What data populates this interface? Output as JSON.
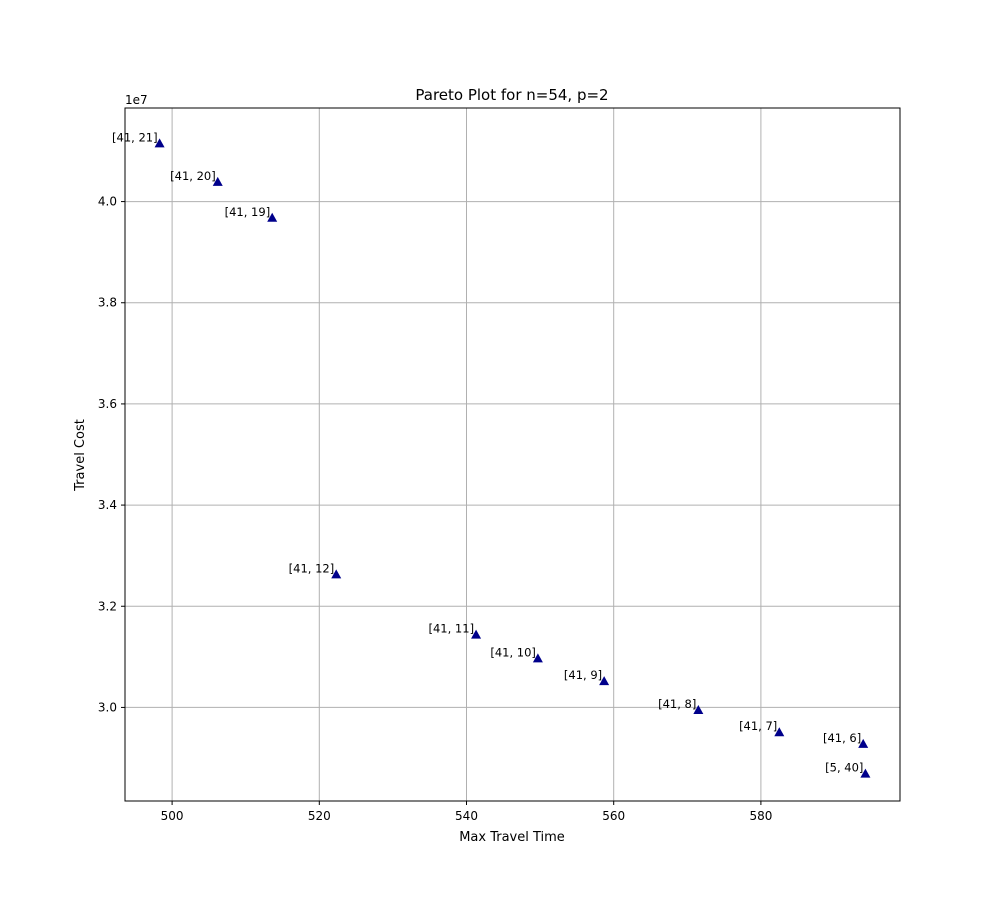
{
  "chart_data": {
    "type": "scatter",
    "title": "Pareto Plot for n=54, p=2",
    "xlabel": "Max Travel Time",
    "ylabel": "Travel Cost",
    "y_offset_label": "1e7",
    "xlim": [
      493.6,
      598.9
    ],
    "ylim": [
      28150000,
      41850000
    ],
    "x_ticks": [
      500,
      520,
      540,
      560,
      580
    ],
    "x_tick_labels": [
      "500",
      "520",
      "540",
      "560",
      "580"
    ],
    "y_ticks": [
      30000000,
      32000000,
      34000000,
      36000000,
      38000000,
      40000000
    ],
    "y_tick_labels": [
      "3.0",
      "3.2",
      "3.4",
      "3.6",
      "3.8",
      "4.0"
    ],
    "grid": true,
    "marker": "triangle",
    "marker_color": "#00008b",
    "points": [
      {
        "x": 498.3,
        "y": 41150000,
        "label": "[41, 21]"
      },
      {
        "x": 506.2,
        "y": 40390000,
        "label": "[41, 20]"
      },
      {
        "x": 513.6,
        "y": 39680000,
        "label": "[41, 19]"
      },
      {
        "x": 522.3,
        "y": 32630000,
        "label": "[41, 12]"
      },
      {
        "x": 541.3,
        "y": 31440000,
        "label": "[41, 11]"
      },
      {
        "x": 549.7,
        "y": 30970000,
        "label": "[41, 10]"
      },
      {
        "x": 558.7,
        "y": 30520000,
        "label": "[41, 9]"
      },
      {
        "x": 571.5,
        "y": 29950000,
        "label": "[41, 8]"
      },
      {
        "x": 582.5,
        "y": 29510000,
        "label": "[41, 7]"
      },
      {
        "x": 593.9,
        "y": 29280000,
        "label": "[41, 6]"
      },
      {
        "x": 594.2,
        "y": 28690000,
        "label": "[5, 40]"
      }
    ]
  }
}
